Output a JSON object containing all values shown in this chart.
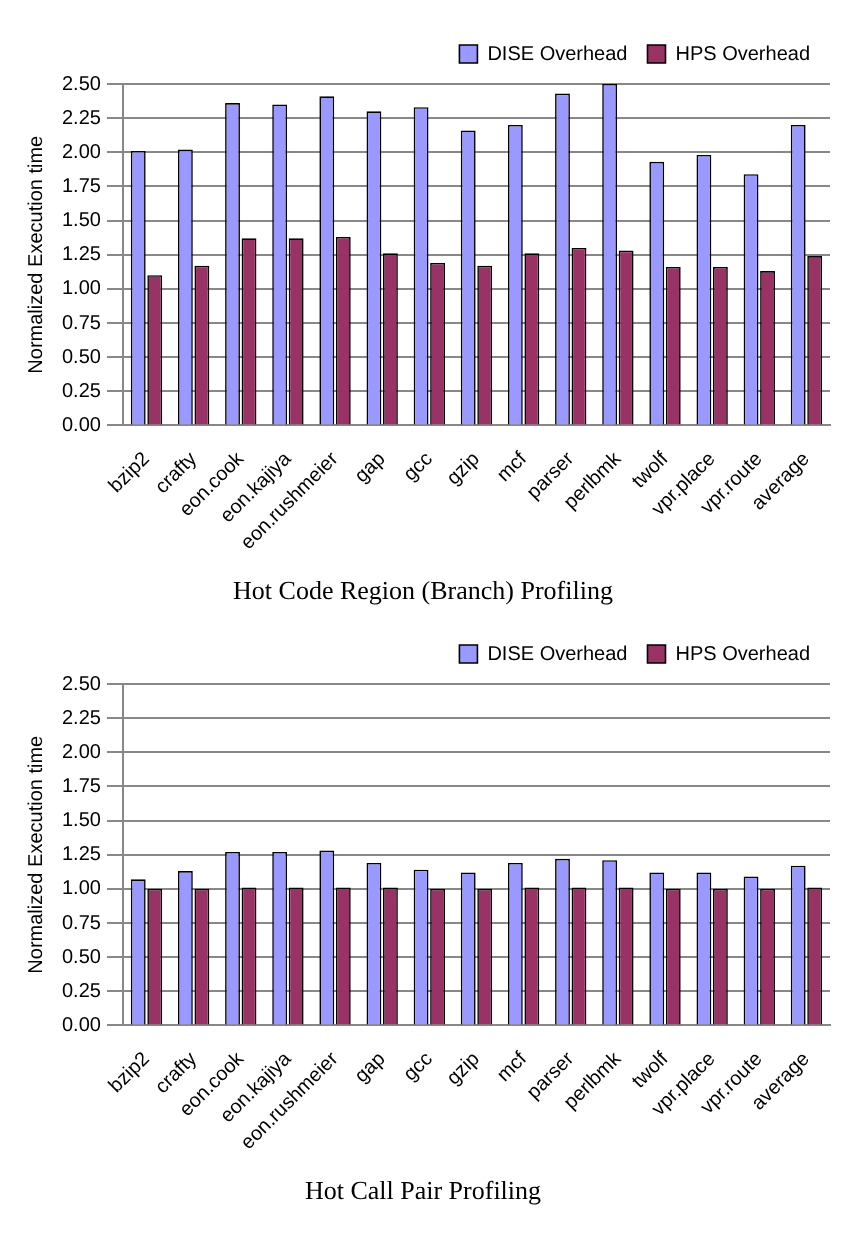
{
  "chart_data": [
    {
      "type": "bar",
      "title": "Hot Code Region (Branch) Profiling",
      "ylabel": "Normalized Execution time",
      "categories": [
        "bzip2",
        "crafty",
        "eon.cook",
        "eon.kajiya",
        "eon.rushmeier",
        "gap",
        "gcc",
        "gzip",
        "mcf",
        "parser",
        "perlbmk",
        "twolf",
        "vpr.place",
        "vpr.route",
        "average"
      ],
      "series": [
        {
          "name": "DISE Overhead",
          "color": "#9999ff",
          "values": [
            2.01,
            2.02,
            2.36,
            2.35,
            2.41,
            2.3,
            2.33,
            2.16,
            2.2,
            2.43,
            2.5,
            1.93,
            1.98,
            1.84,
            2.2
          ]
        },
        {
          "name": "HPS Overhead",
          "color": "#993366",
          "values": [
            1.1,
            1.17,
            1.37,
            1.37,
            1.38,
            1.26,
            1.19,
            1.17,
            1.26,
            1.3,
            1.28,
            1.16,
            1.16,
            1.13,
            1.24
          ]
        }
      ],
      "ylim": [
        0,
        2.5
      ],
      "yticks": [
        {
          "value": 0,
          "label": "0.00"
        },
        {
          "value": 0.25,
          "label": "0.25"
        },
        {
          "value": 0.5,
          "label": "0.50"
        },
        {
          "value": 0.75,
          "label": "0.75"
        },
        {
          "value": 1,
          "label": "1.00"
        },
        {
          "value": 1.25,
          "label": "1.25"
        },
        {
          "value": 1.5,
          "label": "1.50"
        },
        {
          "value": 1.75,
          "label": "1.75"
        },
        {
          "value": 2,
          "label": "2.00"
        },
        {
          "value": 2.25,
          "label": "2.25"
        },
        {
          "value": 2.5,
          "label": "2.50"
        }
      ],
      "grid": "y",
      "legend": "top right"
    },
    {
      "type": "bar",
      "title": "Hot Call Pair Profiling",
      "ylabel": "Normalized Execution time",
      "categories": [
        "bzip2",
        "crafty",
        "eon.cook",
        "eon.kajiya",
        "eon.rushmeier",
        "gap",
        "gcc",
        "gzip",
        "mcf",
        "parser",
        "perlbmk",
        "twolf",
        "vpr.place",
        "vpr.route",
        "average"
      ],
      "series": [
        {
          "name": "DISE Overhead",
          "color": "#9999ff",
          "values": [
            1.07,
            1.13,
            1.27,
            1.27,
            1.28,
            1.19,
            1.14,
            1.12,
            1.19,
            1.22,
            1.21,
            1.12,
            1.12,
            1.09,
            1.17
          ]
        },
        {
          "name": "HPS Overhead",
          "color": "#993366",
          "values": [
            1.0,
            1.0,
            1.01,
            1.01,
            1.01,
            1.01,
            1.0,
            1.0,
            1.01,
            1.01,
            1.01,
            1.0,
            1.0,
            1.0,
            1.01
          ]
        }
      ],
      "ylim": [
        0,
        2.5
      ],
      "yticks": [
        {
          "value": 0,
          "label": "0.00"
        },
        {
          "value": 0.25,
          "label": "0.25"
        },
        {
          "value": 0.5,
          "label": "0.50"
        },
        {
          "value": 0.75,
          "label": "0.75"
        },
        {
          "value": 1,
          "label": "1.00"
        },
        {
          "value": 1.25,
          "label": "1.25"
        },
        {
          "value": 1.5,
          "label": "1.50"
        },
        {
          "value": 1.75,
          "label": "1.75"
        },
        {
          "value": 2,
          "label": "2.00"
        },
        {
          "value": 2.25,
          "label": "2.25"
        },
        {
          "value": 2.5,
          "label": "2.50"
        }
      ],
      "grid": "y",
      "legend": "top right"
    }
  ]
}
